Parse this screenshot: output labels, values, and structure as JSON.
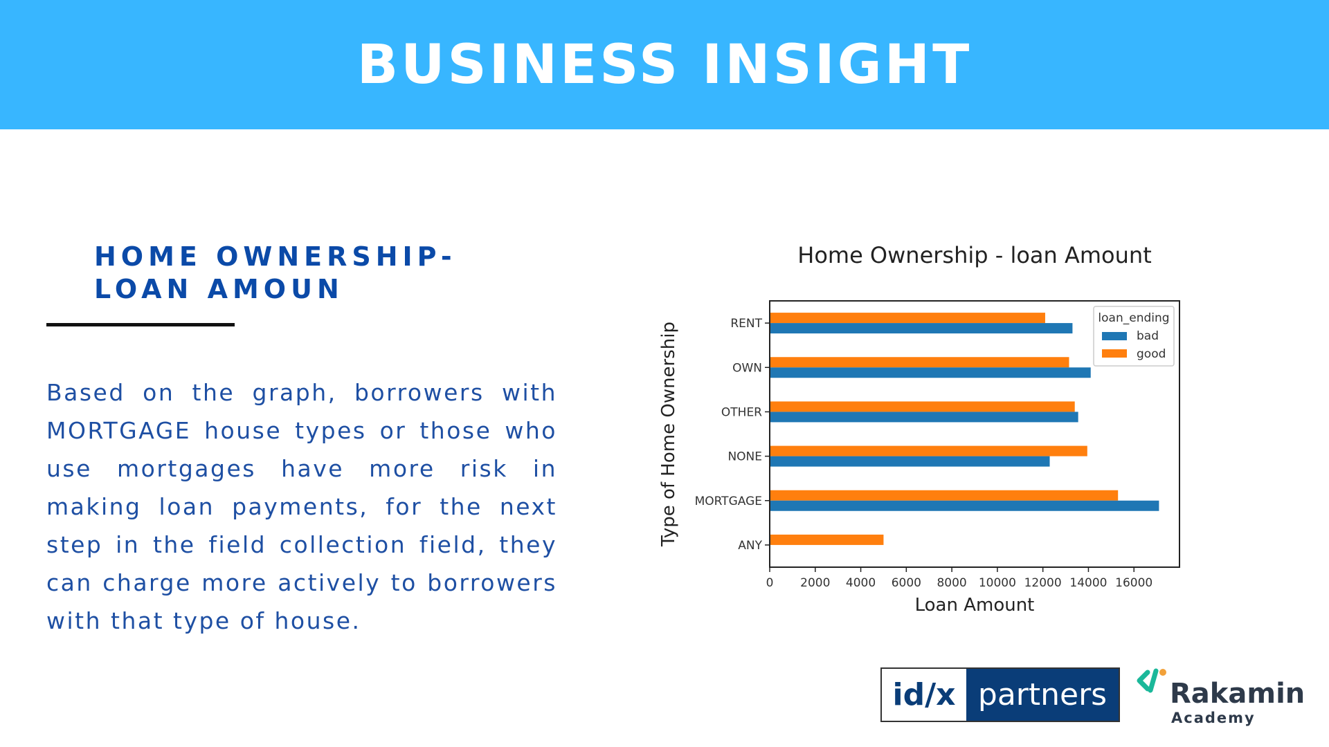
{
  "header": {
    "title": "BUSINESS INSIGHT"
  },
  "section": {
    "title_line1": "HOME OWNERSHIP-",
    "title_line2": "LOAN AMOUN",
    "body": "Based on the graph, borrowers with MORTGAGE house types or those who use mortgages have more risk in making loan payments, for the next step in the field collection field, they can charge more actively to borrowers with that type of house."
  },
  "logos": {
    "idx_left": "id/x",
    "idx_right": "partners",
    "rakamin_name": "Rakamin",
    "rakamin_sub": "Academy"
  },
  "colors": {
    "header_bg": "#38b6ff",
    "bad": "#1f77b4",
    "good": "#ff7f0e",
    "title": "#0b4aa8"
  },
  "chart_data": {
    "type": "bar",
    "orientation": "horizontal",
    "title": "Home Ownership - loan Amount",
    "xlabel": "Loan Amount",
    "ylabel": "Type of Home Ownership",
    "categories": [
      "RENT",
      "OWN",
      "OTHER",
      "NONE",
      "MORTGAGE",
      "ANY"
    ],
    "series": [
      {
        "name": "bad",
        "values": [
          13300,
          14100,
          13550,
          12300,
          17100,
          null
        ]
      },
      {
        "name": "good",
        "values": [
          12100,
          13150,
          13400,
          13950,
          15300,
          5000
        ]
      }
    ],
    "legend_title": "loan_ending",
    "legend_position": "top-right",
    "xlim": [
      0,
      18000
    ],
    "xticks": [
      0,
      2000,
      4000,
      6000,
      8000,
      10000,
      12000,
      14000,
      16000
    ],
    "grid": false
  }
}
